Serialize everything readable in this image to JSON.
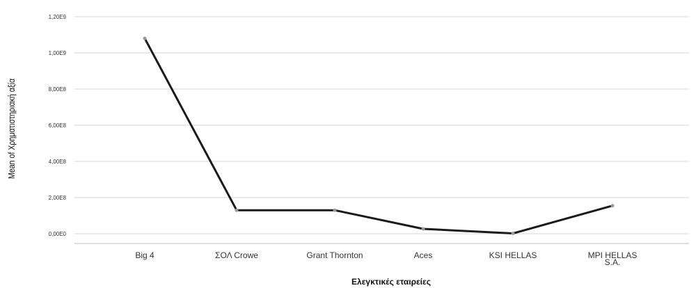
{
  "chart_data": {
    "type": "line",
    "title": "",
    "xlabel": "Ελεγκτικές εταιρείες",
    "ylabel": "Mean of Χρηματιστηριακή αξία",
    "categories": [
      [
        "Big 4"
      ],
      [
        "ΣΟΛ Crowe"
      ],
      [
        "Grant Thornton"
      ],
      [
        "Aces"
      ],
      [
        "KSI HELLAS"
      ],
      [
        "MPI HELLAS",
        "S.A."
      ]
    ],
    "values": [
      1080000000,
      130000000,
      130000000,
      27000000,
      2000000,
      155000000
    ],
    "ylim": [
      0,
      1200000000
    ],
    "yticks": [
      {
        "value": 0,
        "label": "0,00E0"
      },
      {
        "value": 200000000,
        "label": "2,00E8"
      },
      {
        "value": 400000000,
        "label": "4,00E8"
      },
      {
        "value": 600000000,
        "label": "6,00E8"
      },
      {
        "value": 800000000,
        "label": "8,00E8"
      },
      {
        "value": 1000000000,
        "label": "1,00E9"
      },
      {
        "value": 1200000000,
        "label": "1,20E9"
      }
    ],
    "grid": true,
    "legend": "none",
    "colors": {
      "line": "#1a1a1a",
      "marker": "#9a9a9a",
      "grid": "#d4d4d4"
    }
  }
}
